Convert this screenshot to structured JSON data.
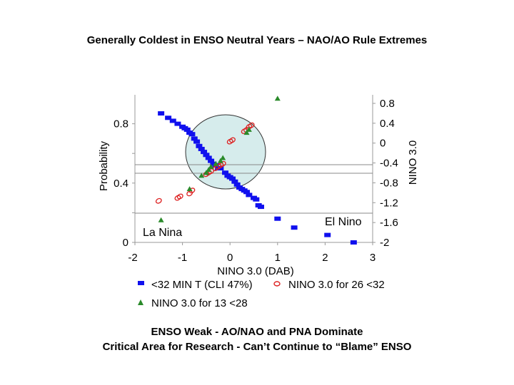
{
  "title": "Generally Coldest in ENSO Neutral Years – NAO/AO Rule Extremes",
  "footer": {
    "line1": "ENSO Weak - AO/NAO and PNA Dominate",
    "line2": "Critical Area for Research - Can’t Continue to “Blame” ENSO"
  },
  "colors": {
    "blue": "#1010ee",
    "red": "#dd2020",
    "green": "#2a8a2a",
    "circle_fill": "#d6ecec"
  },
  "chart_data": {
    "type": "scatter",
    "xlabel": "NINO 3.0 (DAB)",
    "ylabel_left": "Probability",
    "ylabel_right": "NINO 3.0",
    "x_ticks": [
      "-2",
      "-1",
      "0",
      "1",
      "2",
      "3"
    ],
    "y_left_ticks": [
      "0",
      "0.4",
      "0.8"
    ],
    "y_right_ticks": [
      "0.8",
      "0.4",
      "0",
      "-0.4",
      "-0.8",
      "-1.2",
      "-1.6",
      "-2"
    ],
    "xlim": [
      -2,
      3
    ],
    "ylim_left": [
      0,
      1.0
    ],
    "annotations": {
      "la_nina": "La Nina",
      "el_nino": "El Nino"
    },
    "legend": {
      "blue": "<32 MIN T (CLI 47%)",
      "red": "NINO 3.0 for 26 <32",
      "green": "NINO 3.0 for 13 <28"
    },
    "series": [
      {
        "key": "blue",
        "marker": "square",
        "x": [
          -1.45,
          -1.3,
          -1.2,
          -1.1,
          -1.0,
          -0.95,
          -0.9,
          -0.85,
          -0.8,
          -0.75,
          -0.7,
          -0.65,
          -0.6,
          -0.55,
          -0.5,
          -0.45,
          -0.4,
          -0.35,
          -0.3,
          -0.25,
          -0.2,
          -0.1,
          -0.05,
          0.0,
          0.05,
          0.1,
          0.15,
          0.2,
          0.25,
          0.3,
          0.35,
          0.4,
          0.5,
          0.55,
          0.6,
          0.65,
          1.0,
          1.35,
          2.05,
          2.6
        ],
        "y": [
          0.87,
          0.84,
          0.82,
          0.8,
          0.78,
          0.77,
          0.76,
          0.74,
          0.73,
          0.7,
          0.68,
          0.65,
          0.63,
          0.61,
          0.59,
          0.57,
          0.55,
          0.53,
          0.52,
          0.5,
          0.5,
          0.47,
          0.45,
          0.44,
          0.43,
          0.41,
          0.39,
          0.37,
          0.36,
          0.35,
          0.34,
          0.32,
          0.3,
          0.29,
          0.25,
          0.24,
          0.16,
          0.1,
          0.05,
          0.0
        ]
      },
      {
        "key": "red",
        "marker": "ring",
        "x": [
          -1.5,
          -1.1,
          -1.05,
          -0.85,
          -0.8,
          -0.5,
          -0.45,
          -0.4,
          -0.3,
          -0.25,
          -0.2,
          -0.15,
          0.0,
          0.05,
          0.3,
          0.35,
          0.4,
          0.45
        ],
        "y": [
          0.28,
          0.3,
          0.31,
          0.33,
          0.35,
          0.46,
          0.47,
          0.48,
          0.5,
          0.51,
          0.52,
          0.53,
          0.68,
          0.69,
          0.75,
          0.76,
          0.78,
          0.79
        ],
        "y_axis": "right"
      },
      {
        "key": "green",
        "marker": "triangle",
        "x": [
          -1.45,
          -0.85,
          -0.6,
          -0.5,
          -0.45,
          -0.4,
          -0.3,
          -0.2,
          -0.15,
          0.35,
          0.4,
          1.0
        ],
        "y": [
          0.15,
          0.36,
          0.45,
          0.47,
          0.49,
          0.51,
          0.53,
          0.55,
          0.57,
          0.74,
          0.76,
          0.97
        ]
      }
    ]
  }
}
